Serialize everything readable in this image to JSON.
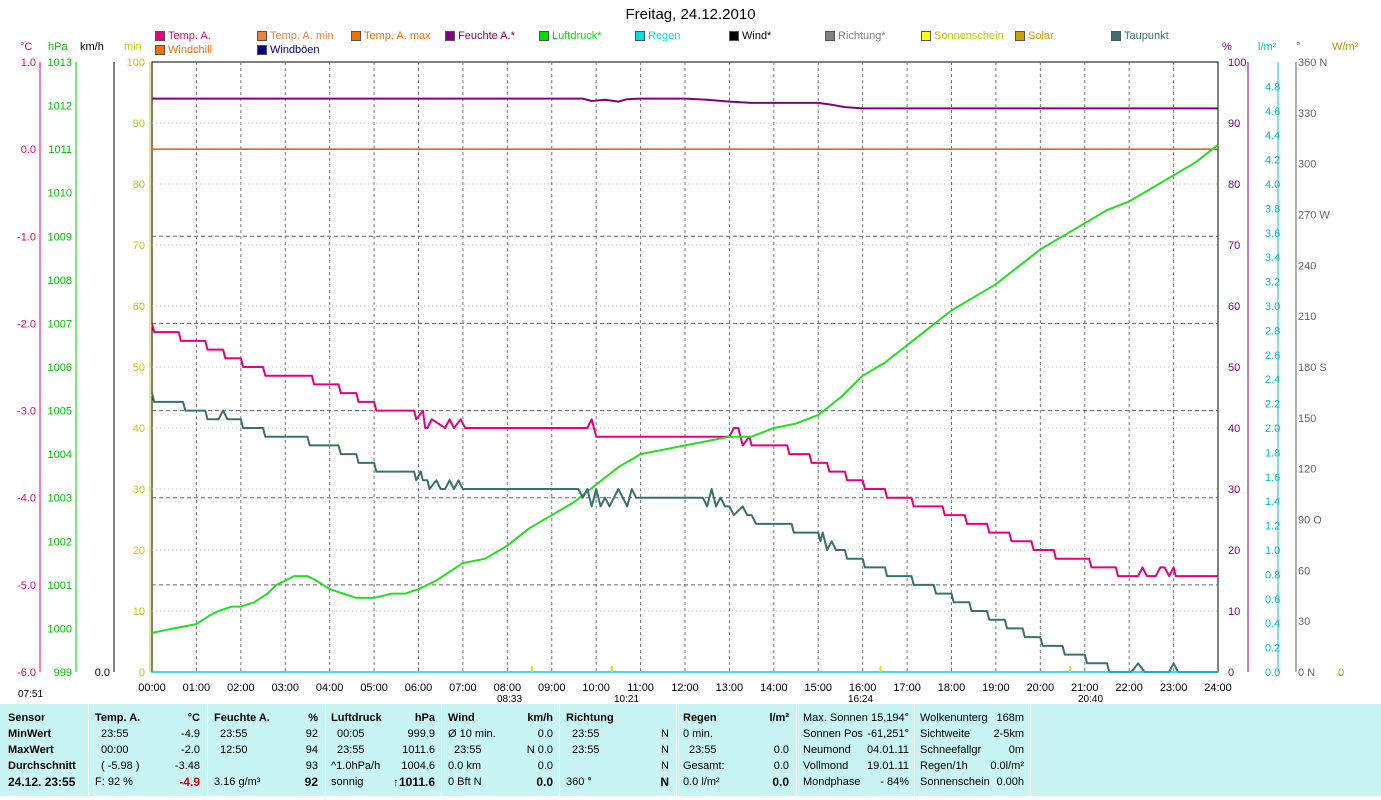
{
  "title": "Freitag, 24.12.2010",
  "legend": [
    {
      "label": "Temp. A.",
      "color": "#e6007e"
    },
    {
      "label": "Temp. A. min",
      "color": "#f08040"
    },
    {
      "label": "Temp. A. max",
      "color": "#f07000"
    },
    {
      "label": "Feuchte A.*",
      "color": "#800080"
    },
    {
      "label": "Luftdruck*",
      "color": "#00e000"
    },
    {
      "label": "Regen",
      "color": "#00e0e0"
    },
    {
      "label": "Wind*",
      "color": "#000000"
    },
    {
      "label": "Richtung*",
      "color": "#808080"
    },
    {
      "label": "Sonnenschein",
      "color": "#ffff00"
    },
    {
      "label": "Solar",
      "color": "#d0a000"
    },
    {
      "label": "Taupunkt",
      "color": "#3b7070"
    },
    {
      "label": "Windchill",
      "color": "#f07000"
    },
    {
      "label": "Windböen",
      "color": "#000080"
    }
  ],
  "axes": {
    "temp_unit": "°C",
    "hpa_unit": "hPa",
    "kmh_unit": "km/h",
    "min_unit": "min",
    "pct_unit": "%",
    "rain_unit": "l/m²",
    "deg_unit": "°",
    "solar_unit": "W/m²",
    "temp_ticks": [
      "1.0",
      "0.0",
      "-1.0",
      "-2.0",
      "-3.0",
      "-4.0",
      "-5.0",
      "-6.0"
    ],
    "hpa_ticks": [
      "1013",
      "1012",
      "1011",
      "1010",
      "1009",
      "1008",
      "1007",
      "1006",
      "1005",
      "1004",
      "1003",
      "1002",
      "1001",
      "1000",
      "999"
    ],
    "kmh_ticks": [
      "0.0"
    ],
    "min_ticks": [
      "100",
      "90",
      "80",
      "70",
      "60",
      "50",
      "40",
      "30",
      "20",
      "10",
      "0"
    ],
    "pct_ticks": [
      "100",
      "90",
      "80",
      "70",
      "60",
      "50",
      "40",
      "30",
      "20",
      "10",
      "0"
    ],
    "rain_ticks": [
      "4.8",
      "4.6",
      "4.4",
      "4.2",
      "4.0",
      "3.8",
      "3.6",
      "3.4",
      "3.2",
      "3.0",
      "2.8",
      "2.6",
      "2.4",
      "2.2",
      "2.0",
      "1.8",
      "1.6",
      "1.4",
      "1.2",
      "1.0",
      "0.8",
      "0.6",
      "0.4",
      "0.2",
      "0.0"
    ],
    "deg_ticks": [
      "360 N",
      "330",
      "300",
      "270 W",
      "240",
      "210",
      "180 S",
      "150",
      "120",
      "90  O",
      "60",
      "30",
      "0   N"
    ],
    "solar_ticks": [
      "0"
    ],
    "x_ticks": [
      "00:00",
      "01:00",
      "02:00",
      "03:00",
      "04:00",
      "05:00",
      "06:00",
      "07:00",
      "08:00",
      "09:00",
      "10:00",
      "11:00",
      "12:00",
      "13:00",
      "14:00",
      "15:00",
      "16:00",
      "17:00",
      "18:00",
      "19:00",
      "20:00",
      "21:00",
      "22:00",
      "23:00",
      "24:00"
    ],
    "markers": [
      "07:51",
      "08:33",
      "10:21",
      "16:24",
      "20:40"
    ]
  },
  "chart_data": {
    "type": "line",
    "title": "Freitag, 24.12.2010",
    "x_unit": "hours",
    "xlim": [
      0,
      24
    ],
    "series": [
      {
        "name": "Temp. A.",
        "unit": "°C",
        "ylim": [
          -6,
          1
        ],
        "x": [
          0,
          0.05,
          0.6,
          0.65,
          1.2,
          1.25,
          1.6,
          1.65,
          2.0,
          2.05,
          2.5,
          2.55,
          3.6,
          3.65,
          4.2,
          4.25,
          4.6,
          4.65,
          5.0,
          5.05,
          5.9,
          5.95,
          6.1,
          6.15,
          6.2,
          6.3,
          6.6,
          6.7,
          6.8,
          6.95,
          7.05,
          9.8,
          9.9,
          10.0,
          13.0,
          13.1,
          13.2,
          13.3,
          13.45,
          13.5,
          14.3,
          14.35,
          14.8,
          14.85,
          15.2,
          15.25,
          15.6,
          15.65,
          16.0,
          16.05,
          16.5,
          16.55,
          17.1,
          17.15,
          17.8,
          17.85,
          18.3,
          18.35,
          18.8,
          18.85,
          19.3,
          19.35,
          19.8,
          19.85,
          20.3,
          20.35,
          21.1,
          21.15,
          21.7,
          21.75,
          22.2,
          22.3,
          22.4,
          22.6,
          22.7,
          22.8,
          22.9,
          23.0,
          23.05,
          24.0
        ],
        "values": [
          -2.0,
          -2.1,
          -2.1,
          -2.2,
          -2.2,
          -2.3,
          -2.3,
          -2.4,
          -2.4,
          -2.5,
          -2.5,
          -2.6,
          -2.6,
          -2.7,
          -2.7,
          -2.8,
          -2.8,
          -2.9,
          -2.9,
          -3.0,
          -3.0,
          -3.1,
          -3.0,
          -3.2,
          -3.2,
          -3.1,
          -3.2,
          -3.1,
          -3.2,
          -3.1,
          -3.2,
          -3.2,
          -3.1,
          -3.3,
          -3.3,
          -3.2,
          -3.2,
          -3.4,
          -3.3,
          -3.4,
          -3.4,
          -3.5,
          -3.5,
          -3.6,
          -3.6,
          -3.7,
          -3.7,
          -3.8,
          -3.8,
          -3.9,
          -3.9,
          -4.0,
          -4.0,
          -4.1,
          -4.1,
          -4.2,
          -4.2,
          -4.3,
          -4.3,
          -4.4,
          -4.4,
          -4.5,
          -4.5,
          -4.6,
          -4.6,
          -4.7,
          -4.7,
          -4.8,
          -4.8,
          -4.9,
          -4.9,
          -4.8,
          -4.9,
          -4.9,
          -4.8,
          -4.8,
          -4.9,
          -4.8,
          -4.9,
          -4.9
        ]
      },
      {
        "name": "Temp. A. max",
        "unit": "°C",
        "ylim": [
          -6,
          1
        ],
        "x": [
          0,
          24
        ],
        "values": [
          0.0,
          0.0
        ]
      },
      {
        "name": "Feuchte A.*",
        "unit": "%",
        "ylim": [
          0,
          100
        ],
        "x": [
          0,
          9.7,
          9.9,
          10.2,
          10.5,
          10.7,
          11.0,
          12.0,
          12.5,
          13.0,
          13.5,
          15.0,
          15.3,
          15.6,
          16.0,
          17.0,
          24.0
        ],
        "values": [
          94,
          94,
          93.6,
          93.8,
          93.5,
          93.9,
          94,
          94,
          93.8,
          93.5,
          93.3,
          93.3,
          93.0,
          92.6,
          92.4,
          92.4,
          92.4
        ]
      },
      {
        "name": "Luftdruck*",
        "unit": "hPa",
        "ylim": [
          999,
          1013
        ],
        "x": [
          0,
          0.5,
          1.0,
          1.3,
          1.5,
          1.8,
          2.0,
          2.3,
          2.6,
          2.8,
          3.0,
          3.2,
          3.5,
          3.7,
          4.0,
          4.3,
          4.6,
          5.0,
          5.4,
          5.7,
          6.0,
          6.4,
          6.7,
          7.0,
          7.5,
          8.0,
          8.5,
          9.0,
          9.5,
          10.0,
          10.5,
          11.0,
          11.5,
          12.0,
          12.5,
          13.0,
          13.5,
          14.0,
          14.5,
          15.0,
          15.5,
          16.0,
          16.5,
          17.0,
          17.5,
          18.0,
          18.5,
          19.0,
          19.5,
          20.0,
          20.5,
          21.0,
          21.5,
          22.0,
          22.5,
          23.0,
          23.5,
          24.0
        ],
        "values": [
          999.9,
          1000.0,
          1000.1,
          1000.3,
          1000.4,
          1000.5,
          1000.5,
          1000.6,
          1000.8,
          1001.0,
          1001.1,
          1001.2,
          1001.2,
          1001.1,
          1000.9,
          1000.8,
          1000.7,
          1000.7,
          1000.8,
          1000.8,
          1000.9,
          1001.1,
          1001.3,
          1001.5,
          1001.6,
          1001.9,
          1002.3,
          1002.6,
          1002.9,
          1003.3,
          1003.7,
          1004.0,
          1004.1,
          1004.2,
          1004.3,
          1004.4,
          1004.4,
          1004.6,
          1004.7,
          1004.9,
          1005.3,
          1005.8,
          1006.1,
          1006.5,
          1006.9,
          1007.3,
          1007.6,
          1007.9,
          1008.3,
          1008.7,
          1009.0,
          1009.3,
          1009.6,
          1009.8,
          1010.1,
          1010.4,
          1010.7,
          1011.1
        ]
      },
      {
        "name": "Taupunkt",
        "unit": "°C",
        "ylim": [
          -6,
          1
        ],
        "x": [
          0,
          0.05,
          0.7,
          0.75,
          1.2,
          1.25,
          1.5,
          1.6,
          1.7,
          1.8,
          2.0,
          2.05,
          2.5,
          2.55,
          3.5,
          3.55,
          4.2,
          4.25,
          4.6,
          4.65,
          5.0,
          5.05,
          5.9,
          5.95,
          6.05,
          6.1,
          6.2,
          6.25,
          6.4,
          6.5,
          6.6,
          6.7,
          6.8,
          6.9,
          7.0,
          9.6,
          9.7,
          9.8,
          9.9,
          10.0,
          10.1,
          10.2,
          10.3,
          10.5,
          10.7,
          10.8,
          10.9,
          11.0,
          12.4,
          12.5,
          12.6,
          12.7,
          12.8,
          12.9,
          13.0,
          13.1,
          13.3,
          13.4,
          13.5,
          13.6,
          14.4,
          14.45,
          15.0,
          15.05,
          15.1,
          15.2,
          15.3,
          15.4,
          15.6,
          15.65,
          16.0,
          16.05,
          16.5,
          16.55,
          17.1,
          17.15,
          17.6,
          17.65,
          18.0,
          18.05,
          18.4,
          18.45,
          18.8,
          18.85,
          19.2,
          19.25,
          19.6,
          19.65,
          20.0,
          20.05,
          20.5,
          20.55,
          21.0,
          21.05,
          21.5,
          21.55,
          22.0,
          22.05,
          22.2,
          22.35,
          22.5,
          22.6,
          22.9,
          23.0,
          23.1,
          23.2,
          24.0
        ],
        "values": [
          -2.8,
          -2.9,
          -2.9,
          -3.0,
          -3.0,
          -3.1,
          -3.1,
          -3.0,
          -3.1,
          -3.1,
          -3.1,
          -3.2,
          -3.2,
          -3.3,
          -3.3,
          -3.4,
          -3.4,
          -3.5,
          -3.5,
          -3.6,
          -3.6,
          -3.7,
          -3.7,
          -3.8,
          -3.7,
          -3.8,
          -3.8,
          -3.9,
          -3.8,
          -3.9,
          -3.9,
          -3.8,
          -3.9,
          -3.8,
          -3.9,
          -3.9,
          -4.0,
          -3.9,
          -4.1,
          -3.9,
          -4.1,
          -4.0,
          -4.1,
          -3.9,
          -4.1,
          -3.9,
          -4.0,
          -4.0,
          -4.0,
          -4.1,
          -3.9,
          -4.1,
          -4.0,
          -4.1,
          -4.1,
          -4.2,
          -4.1,
          -4.2,
          -4.2,
          -4.3,
          -4.3,
          -4.4,
          -4.4,
          -4.5,
          -4.4,
          -4.6,
          -4.5,
          -4.6,
          -4.6,
          -4.7,
          -4.7,
          -4.8,
          -4.8,
          -4.9,
          -4.9,
          -5.0,
          -5.0,
          -5.1,
          -5.1,
          -5.2,
          -5.2,
          -5.3,
          -5.3,
          -5.4,
          -5.4,
          -5.5,
          -5.5,
          -5.6,
          -5.6,
          -5.7,
          -5.7,
          -5.8,
          -5.8,
          -5.9,
          -5.9,
          -6.0,
          -6.0,
          -6.0,
          -5.9,
          -6.0,
          -6.0,
          -6.0,
          -6.0,
          -5.9,
          -6.0,
          -6.0,
          -6.0
        ]
      },
      {
        "name": "Regen",
        "unit": "l/m²",
        "ylim": [
          0,
          5
        ],
        "x": [
          0,
          24
        ],
        "values": [
          0.0,
          0.0
        ]
      }
    ]
  },
  "table": {
    "sensor": {
      "header": "Sensor",
      "rows": [
        "MinWert",
        "MaxWert",
        "Durchschnitt",
        "24.12. 23:55"
      ]
    },
    "temp": {
      "header": "Temp. A.",
      "unit": "°C",
      "r1a": "23:55",
      "r1b": "-4.9",
      "r2a": "00:00",
      "r2b": "-2.0",
      "r3a": "( -5.98 )",
      "r3b": "-3.48",
      "r4a": "F: 92 %",
      "r4b": "-4.9"
    },
    "hum": {
      "header": "Feuchte A.",
      "unit": "%",
      "r1a": "23:55",
      "r1b": "92",
      "r2a": "12:50",
      "r2b": "94",
      "r3b": "93",
      "r4a": "3.16 g/m³",
      "r4b": "92"
    },
    "press": {
      "header": "Luftdruck",
      "unit": "hPa",
      "r1a": "00:05",
      "r1b": "999.9",
      "r2a": "23:55",
      "r2b": "1011.6",
      "r3a": "^1.0hPa/h",
      "r3b": "1004.6",
      "r4a": "sonnig",
      "r4b": "↑1011.6"
    },
    "wind": {
      "header": "Wind",
      "unit": "km/h",
      "r1a": "Ø 10 min.",
      "r1b": "0.0",
      "r2a": "23:55",
      "r2b": "N 0.0",
      "r3a": "0.0 km",
      "r3b": "0.0",
      "r4a": "0 Bft N",
      "r4b": "0.0"
    },
    "dir": {
      "header": "Richtung",
      "r1a": "23:55",
      "r1b": "N",
      "r2a": "23:55",
      "r2b": "N",
      "r3b": "N",
      "r4a": "360 °",
      "r4b": "N"
    },
    "rain": {
      "header": "Regen",
      "unit": "l/m²",
      "r1a": "0 min.",
      "r2a": "23:55",
      "r2b": "0.0",
      "r3a": "Gesamt:",
      "r3b": "0.0",
      "r4a": "0.0 l/m²",
      "r4b": "0.0"
    },
    "astro": {
      "r1a": "Max. Sonnen",
      "r1b": "15,194°",
      "r2a": "Sonnen Pos",
      "r2b": "-61,251°",
      "r3a": "Neumond",
      "r3b": "04.01.11",
      "r4a": "Vollmond",
      "r4b": "19.01.11",
      "r5a": "Mondphase",
      "r5b": "- 84%"
    },
    "misc": {
      "r1a": "Wolkenunterg",
      "r1b": "168m",
      "r2a": "Sichtweite",
      "r2b": "2-5km",
      "r3a": "Schneefallgr",
      "r3b": "0m",
      "r4a": "Regen/1h",
      "r4b": "0.0l/m²",
      "r5a": "Sonnenschein",
      "r5b": "0.00h"
    }
  }
}
